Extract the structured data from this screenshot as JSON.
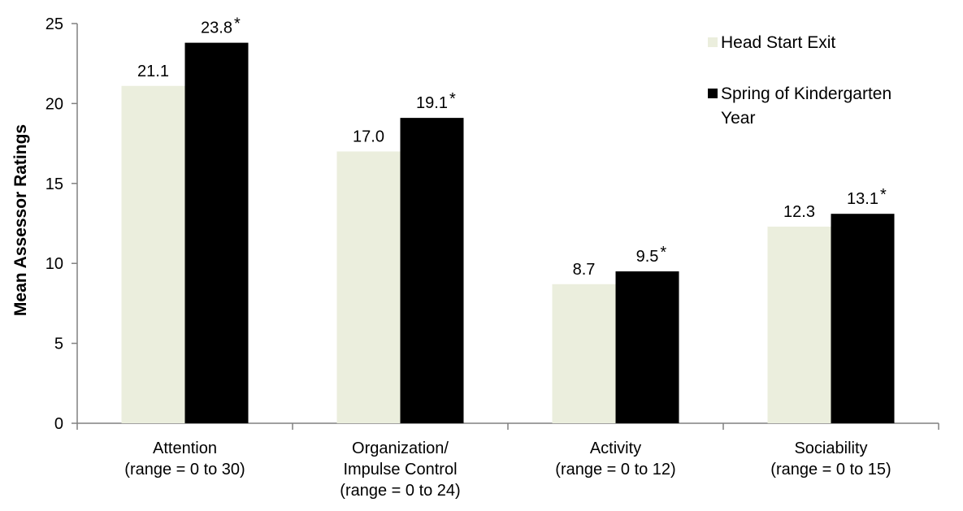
{
  "chart_data": {
    "type": "bar",
    "title": "",
    "xlabel": "",
    "ylabel": "Mean Assessor Ratings",
    "ylim": [
      0,
      25
    ],
    "yticks": [
      0,
      5,
      10,
      15,
      20,
      25
    ],
    "grid": false,
    "legend_position": "top-right",
    "categories": [
      [
        "Attention",
        "(range = 0 to 30)"
      ],
      [
        "Organization/",
        "Impulse Control",
        "(range = 0 to 24)"
      ],
      [
        "Activity",
        "(range = 0 to 12)"
      ],
      [
        "Sociability",
        "(range = 0 to 15)"
      ]
    ],
    "series": [
      {
        "name": "Head Start Exit",
        "legend_lines": [
          "Head Start Exit"
        ],
        "color": "#EBEEDD",
        "values": [
          21.1,
          17.0,
          8.7,
          12.3
        ],
        "labels": [
          "21.1",
          "17.0",
          "8.7",
          "12.3"
        ]
      },
      {
        "name": "Spring of Kindergarten Year",
        "legend_lines": [
          "Spring of Kindergarten",
          "Year"
        ],
        "color": "#000000",
        "values": [
          23.8,
          19.1,
          9.5,
          13.1
        ],
        "labels": [
          "23.8",
          "19.1",
          "9.5",
          "13.1"
        ],
        "significance_marker": "*"
      }
    ]
  }
}
